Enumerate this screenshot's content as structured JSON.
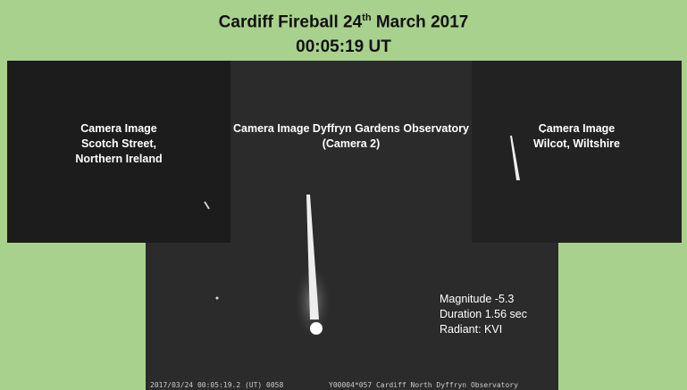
{
  "header": {
    "title_parts": [
      "Cardiff Fireball 24",
      "th",
      " March 2017"
    ],
    "time": "00:05:19 UT"
  },
  "cameras": {
    "left": {
      "lines": [
        "Camera Image",
        "Scotch Street,",
        "Northern Ireland"
      ]
    },
    "center": {
      "lines": [
        "Camera Image Dyffryn Gardens Observatory",
        "(Camera 2)"
      ],
      "stats": [
        "Magnitude -5.3",
        "Duration 1.56 sec",
        "Radiant: KVI"
      ],
      "footer": [
        "2017/03/24 00:05:19.2 (UT) 0058",
        "Y00004*057 Cardiff North Dyffryn Observatory"
      ]
    },
    "right": {
      "lines": [
        "Camera Image",
        "Wilcot, Wiltshire"
      ]
    }
  }
}
